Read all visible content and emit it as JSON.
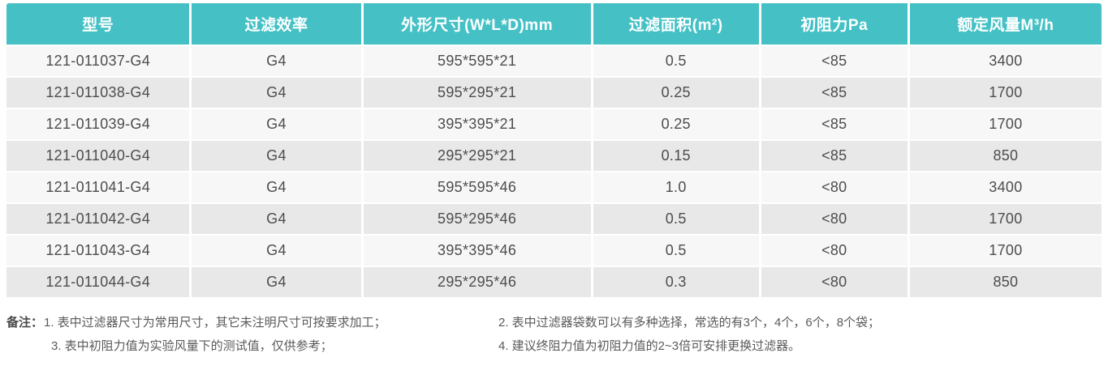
{
  "table": {
    "columns": [
      "型号",
      "过滤效率",
      "外形尺寸(W*L*D)mm",
      "过滤面积(m²)",
      "初阻力Pa",
      "额定风量M³/h"
    ],
    "rows": [
      [
        "121-011037-G4",
        "G4",
        "595*595*21",
        "0.5",
        "<85",
        "3400"
      ],
      [
        "121-011038-G4",
        "G4",
        "595*295*21",
        "0.25",
        "<85",
        "1700"
      ],
      [
        "121-011039-G4",
        "G4",
        "395*395*21",
        "0.25",
        "<85",
        "1700"
      ],
      [
        "121-011040-G4",
        "G4",
        "295*295*21",
        "0.15",
        "<85",
        "850"
      ],
      [
        "121-011041-G4",
        "G4",
        "595*595*46",
        "1.0",
        "<80",
        "3400"
      ],
      [
        "121-011042-G4",
        "G4",
        "595*295*46",
        "0.5",
        "<80",
        "1700"
      ],
      [
        "121-011043-G4",
        "G4",
        "395*395*46",
        "0.5",
        "<80",
        "1700"
      ],
      [
        "121-011044-G4",
        "G4",
        "295*295*46",
        "0.3",
        "<80",
        "850"
      ]
    ]
  },
  "notes": {
    "label": "备注：",
    "items": [
      "1. 表中过滤器尺寸为常用尺寸，其它未注明尺寸可按要求加工；",
      "2. 表中过滤器袋数可以有多种选择，常选的有3个，4个，6个，8个袋；",
      "3. 表中初阻力值为实验风量下的测试值，仅供参考；",
      "4. 建议终阻力值为初阻力值的2~3倍可安排更换过滤器。"
    ]
  },
  "colors": {
    "header_bg": "#45c1c6",
    "header_text": "#ffffff",
    "row_light": "#f7f7f7",
    "row_dark": "#e8e8e8",
    "cell_text": "#4d4d4d",
    "note_text": "#5a5a5a"
  }
}
